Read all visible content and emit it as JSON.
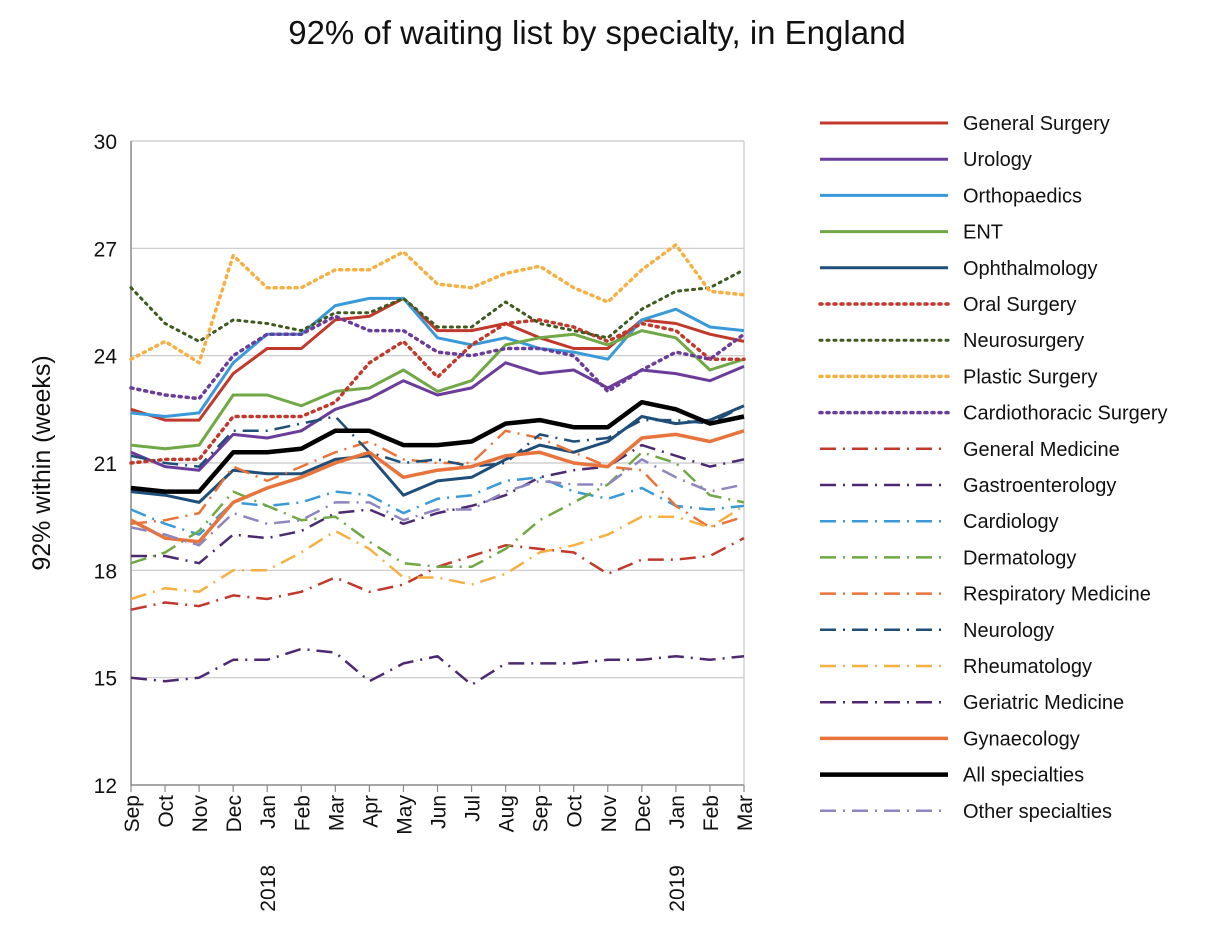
{
  "chart_data": {
    "type": "line",
    "title": "92% of waiting list by specialty, in England",
    "xlabel": "",
    "ylabel": "92% within (weeks)",
    "ylim": [
      12,
      30
    ],
    "yticks": [
      12,
      15,
      18,
      21,
      24,
      27,
      30
    ],
    "grid": "horizontal",
    "legend_position": "right",
    "categories": [
      "Sep",
      "Oct",
      "Nov",
      "Dec",
      "Jan",
      "Feb",
      "Mar",
      "Apr",
      "May",
      "Jun",
      "Jul",
      "Aug",
      "Sep",
      "Oct",
      "Nov",
      "Dec",
      "Jan",
      "Feb",
      "Mar"
    ],
    "year_labels": [
      {
        "index": 4,
        "text": "2018"
      },
      {
        "index": 16,
        "text": "2019"
      }
    ],
    "series": [
      {
        "name": "General Surgery",
        "color": "#C0392B",
        "style": "solid",
        "width": 3,
        "values": [
          22.5,
          22.2,
          22.2,
          23.5,
          24.2,
          24.2,
          25.0,
          25.1,
          25.6,
          24.7,
          24.7,
          24.9,
          24.5,
          24.2,
          24.2,
          25.0,
          24.9,
          24.6,
          24.4
        ]
      },
      {
        "name": "Urology",
        "color": "#6A3D9A",
        "style": "solid",
        "width": 3,
        "values": [
          21.3,
          20.9,
          20.8,
          21.8,
          21.7,
          21.9,
          22.5,
          22.8,
          23.3,
          22.9,
          23.1,
          23.8,
          23.5,
          23.6,
          23.1,
          23.6,
          23.5,
          23.3,
          23.7
        ]
      },
      {
        "name": "Orthopaedics",
        "color": "#3A9AD9",
        "style": "solid",
        "width": 3,
        "values": [
          22.4,
          22.3,
          22.4,
          23.8,
          24.6,
          24.6,
          25.4,
          25.6,
          25.6,
          24.5,
          24.3,
          24.5,
          24.2,
          24.1,
          23.9,
          25.0,
          25.3,
          24.8,
          24.7
        ]
      },
      {
        "name": "ENT",
        "color": "#70A845",
        "style": "solid",
        "width": 3,
        "values": [
          21.5,
          21.4,
          21.5,
          22.9,
          22.9,
          22.6,
          23.0,
          23.1,
          23.6,
          23.0,
          23.3,
          24.3,
          24.5,
          24.6,
          24.3,
          24.7,
          24.5,
          23.6,
          23.9
        ]
      },
      {
        "name": "Ophthalmology",
        "color": "#1F4E79",
        "style": "solid",
        "width": 3,
        "values": [
          20.2,
          20.1,
          19.9,
          20.8,
          20.7,
          20.7,
          21.1,
          21.2,
          20.1,
          20.5,
          20.6,
          21.1,
          21.5,
          21.3,
          21.6,
          22.3,
          22.1,
          22.2,
          22.6
        ]
      },
      {
        "name": "Oral Surgery",
        "color": "#C0392B",
        "style": "dot",
        "width": 3.5,
        "values": [
          21.0,
          21.1,
          21.1,
          22.3,
          22.3,
          22.3,
          22.7,
          23.8,
          24.4,
          23.4,
          24.3,
          24.9,
          25.0,
          24.8,
          24.4,
          24.9,
          24.7,
          23.9,
          23.9
        ]
      },
      {
        "name": "Neurosurgery",
        "color": "#3E5A1F",
        "style": "dot",
        "width": 3,
        "values": [
          25.9,
          24.9,
          24.4,
          25.0,
          24.9,
          24.7,
          25.2,
          25.2,
          25.6,
          24.8,
          24.8,
          25.5,
          24.9,
          24.7,
          24.5,
          25.3,
          25.8,
          25.9,
          26.4
        ]
      },
      {
        "name": "Plastic Surgery",
        "color": "#F5B041",
        "style": "dot",
        "width": 3.5,
        "values": [
          23.9,
          24.4,
          23.8,
          26.8,
          25.9,
          25.9,
          26.4,
          26.4,
          26.9,
          26.0,
          25.9,
          26.3,
          26.5,
          25.9,
          25.5,
          26.4,
          27.1,
          25.8,
          25.7
        ]
      },
      {
        "name": "Cardiothoracic Surgery",
        "color": "#6A3D9A",
        "style": "dot",
        "width": 3.5,
        "values": [
          23.1,
          22.9,
          22.8,
          24.0,
          24.6,
          24.6,
          25.1,
          24.7,
          24.7,
          24.1,
          24.0,
          24.2,
          24.2,
          24.0,
          23.0,
          23.6,
          24.1,
          23.9,
          24.6
        ]
      },
      {
        "name": "General Medicine",
        "color": "#C0392B",
        "style": "longdash",
        "width": 2.5,
        "values": [
          16.9,
          17.1,
          17.0,
          17.3,
          17.2,
          17.4,
          17.8,
          17.4,
          17.6,
          18.1,
          18.4,
          18.7,
          18.6,
          18.5,
          17.9,
          18.3,
          18.3,
          18.4,
          18.9
        ]
      },
      {
        "name": "Gastroenterology",
        "color": "#4B2A72",
        "style": "longdash",
        "width": 2.5,
        "values": [
          18.4,
          18.4,
          18.2,
          19.0,
          18.9,
          19.1,
          19.6,
          19.7,
          19.3,
          19.6,
          19.8,
          20.1,
          20.6,
          20.8,
          20.9,
          21.5,
          21.2,
          20.9,
          21.1
        ]
      },
      {
        "name": "Cardiology",
        "color": "#3A9AD9",
        "style": "longdash",
        "width": 2.5,
        "values": [
          19.7,
          19.3,
          19.0,
          19.9,
          19.8,
          19.9,
          20.2,
          20.1,
          19.6,
          20.0,
          20.1,
          20.5,
          20.6,
          20.2,
          20.0,
          20.3,
          19.8,
          19.7,
          19.8
        ]
      },
      {
        "name": "Dermatology",
        "color": "#70A845",
        "style": "longdash",
        "width": 2.5,
        "values": [
          18.2,
          18.5,
          19.1,
          20.2,
          19.8,
          19.4,
          19.5,
          18.8,
          18.2,
          18.1,
          18.1,
          18.6,
          19.4,
          19.9,
          20.4,
          21.3,
          21.0,
          20.1,
          19.9
        ]
      },
      {
        "name": "Respiratory Medicine",
        "color": "#E8743B",
        "style": "longdash",
        "width": 2.5,
        "values": [
          19.3,
          19.4,
          19.6,
          20.9,
          20.5,
          20.9,
          21.3,
          21.6,
          21.1,
          21.0,
          21.0,
          21.9,
          21.7,
          21.3,
          20.9,
          20.8,
          19.8,
          19.2,
          19.5
        ]
      },
      {
        "name": "Neurology",
        "color": "#1F4E79",
        "style": "longdash",
        "width": 2.5,
        "values": [
          21.2,
          21.0,
          20.9,
          21.9,
          21.9,
          22.1,
          22.3,
          21.3,
          21.0,
          21.1,
          20.9,
          21.0,
          21.8,
          21.6,
          21.7,
          22.2,
          22.2,
          22.1,
          22.6
        ]
      },
      {
        "name": "Rheumatology",
        "color": "#F5B041",
        "style": "longdash",
        "width": 2.5,
        "values": [
          17.2,
          17.5,
          17.4,
          18.0,
          18.0,
          18.5,
          19.1,
          18.6,
          17.8,
          17.8,
          17.6,
          17.9,
          18.5,
          18.7,
          19.0,
          19.5,
          19.5,
          19.2,
          19.8
        ]
      },
      {
        "name": "Geriatric Medicine",
        "color": "#4B2A72",
        "style": "longdash",
        "width": 2.5,
        "values": [
          15.0,
          14.9,
          15.0,
          15.5,
          15.5,
          15.8,
          15.7,
          14.9,
          15.4,
          15.6,
          14.8,
          15.4,
          15.4,
          15.4,
          15.5,
          15.5,
          15.6,
          15.5,
          15.6
        ]
      },
      {
        "name": "Gynaecology",
        "color": "#E8743B",
        "style": "solid",
        "width": 3.5,
        "values": [
          19.4,
          18.9,
          18.8,
          19.9,
          20.3,
          20.6,
          21.0,
          21.3,
          20.6,
          20.8,
          20.9,
          21.2,
          21.3,
          21.0,
          20.9,
          21.7,
          21.8,
          21.6,
          21.9
        ]
      },
      {
        "name": "All specialties",
        "color": "#000000",
        "style": "solid",
        "width": 4.5,
        "values": [
          20.3,
          20.2,
          20.2,
          21.3,
          21.3,
          21.4,
          21.9,
          21.9,
          21.5,
          21.5,
          21.6,
          22.1,
          22.2,
          22.0,
          22.0,
          22.7,
          22.5,
          22.1,
          22.3
        ]
      },
      {
        "name": "Other specialties",
        "color": "#8E86C1",
        "style": "longdash",
        "width": 2.5,
        "values": [
          19.2,
          19.0,
          18.7,
          19.6,
          19.3,
          19.4,
          19.9,
          19.9,
          19.4,
          19.7,
          19.7,
          20.2,
          20.5,
          20.4,
          20.4,
          21.1,
          20.6,
          20.2,
          20.4
        ]
      }
    ]
  }
}
